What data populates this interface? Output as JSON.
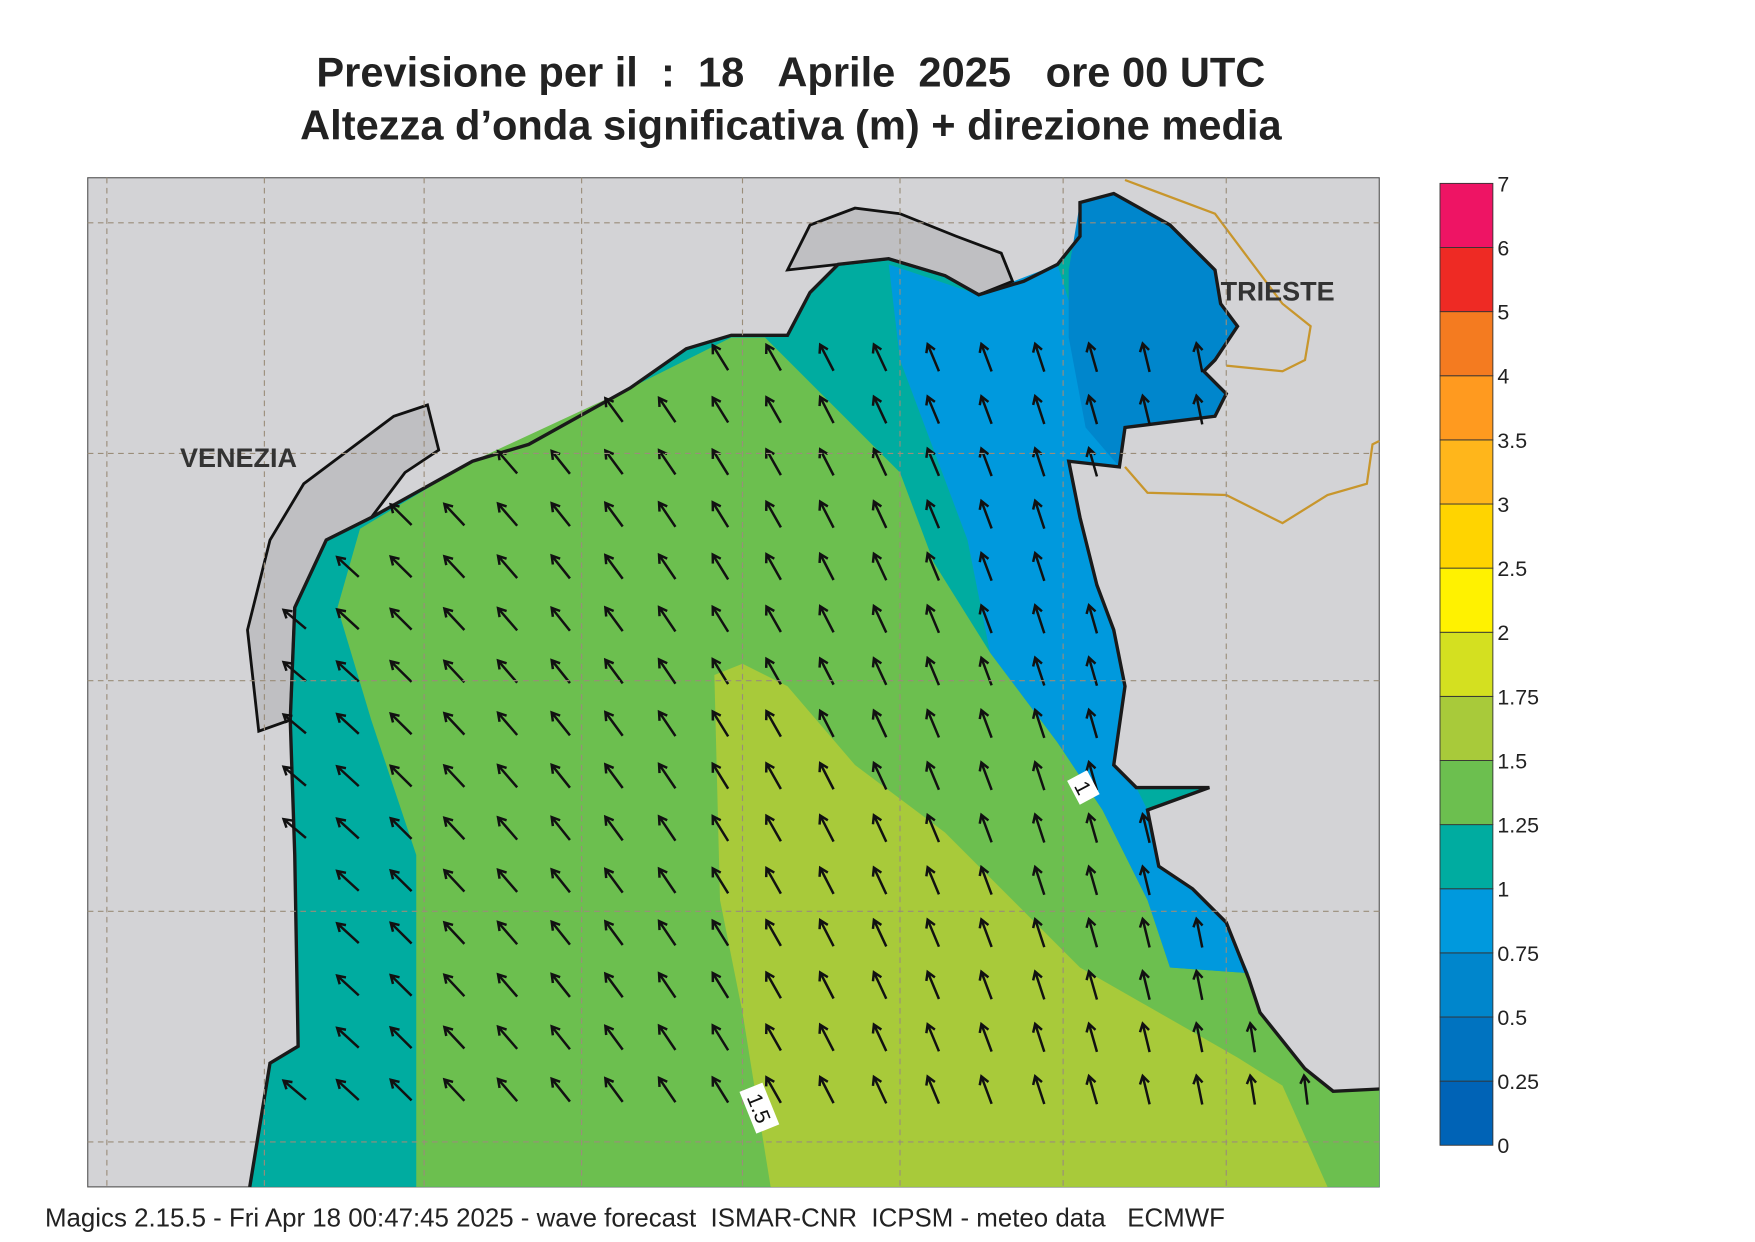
{
  "header": {
    "title": "Previsione per il  :  18   Aprile  2025   ore 00 UTC",
    "subtitle": "Altezza d’onda significativa (m) + direzione media"
  },
  "map": {
    "labels": [
      "VENEZIA",
      "TRIESTE"
    ],
    "contour_labels": [
      "1",
      "1.5"
    ],
    "colorbar": {
      "ticks": [
        0,
        0.25,
        0.5,
        0.75,
        1,
        1.25,
        1.5,
        1.75,
        2,
        2.5,
        3,
        3.5,
        4,
        5,
        6,
        7
      ],
      "colors": [
        "#0063b6",
        "#0073c0",
        "#0086cc",
        "#0099dd",
        "#00aca0",
        "#6cbf4f",
        "#a8ca3a",
        "#d4e020",
        "#fff200",
        "#ffd400",
        "#ffb61b",
        "#ff9a1f",
        "#f47b20",
        "#ee2a24",
        "#ee1464"
      ]
    }
  },
  "footer": "Magics 2.15.5 - Fri Apr 18 00:47:45 2025 - wave forecast  ISMAR-CNR  ICPSM - meteo data   ECMWF"
}
